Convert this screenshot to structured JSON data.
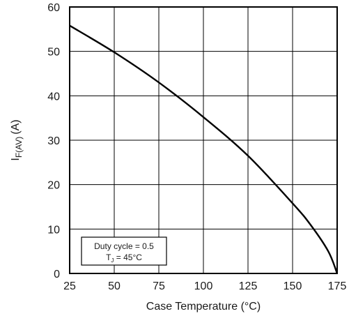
{
  "chart_data": {
    "type": "line",
    "title": "",
    "xlabel": "Case Temperature (°C)",
    "ylabel_main": "I",
    "ylabel_sub": "F(AV)",
    "ylabel_unit": "(A)",
    "xlim": [
      25,
      175
    ],
    "ylim": [
      0,
      60
    ],
    "x_ticks": [
      25,
      50,
      75,
      100,
      125,
      150,
      175
    ],
    "y_ticks": [
      0,
      10,
      20,
      30,
      40,
      50,
      60
    ],
    "grid": true,
    "series": [
      {
        "x": [
          25,
          50,
          75,
          100,
          125,
          150,
          160,
          170,
          175
        ],
        "y": [
          55.8,
          49.8,
          43,
          35.2,
          26.5,
          15.8,
          11,
          5,
          0
        ]
      }
    ],
    "annotation": {
      "line1": "Duty cycle = 0.5",
      "line2_main": "T",
      "line2_sub": "J",
      "line2_rest": " = 45°C"
    }
  }
}
